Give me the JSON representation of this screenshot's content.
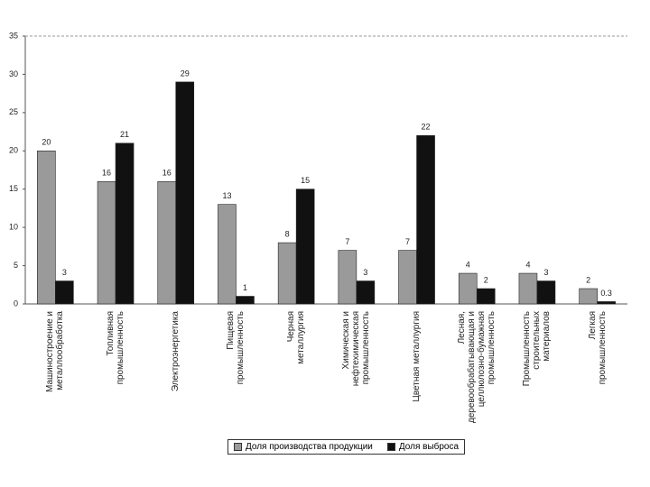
{
  "chart_data": {
    "type": "bar",
    "categories": [
      "Машиностроение и\nметаллообработка",
      "Топливная\nпромышленность",
      "Электроэнергетика",
      "Пищевая\nпромышленность",
      "Черная\nметаллургия",
      "Химическая и\nнефтехимическая\nпромышленность",
      "Цветная металлургия",
      "Лесная,\nдеревообрабатывающая и\nцеллюлозно-бумажная\nпромышленность",
      "Промышленность\nстроительных\nматериалов",
      "Легкая\nпромышленность"
    ],
    "series": [
      {
        "name": "Доля производства продукции",
        "color": "#9a9a9a",
        "values": [
          20,
          16,
          16,
          13,
          8,
          7,
          7,
          4,
          4,
          2
        ]
      },
      {
        "name": "Доля выброса",
        "color": "#111111",
        "values": [
          3,
          21,
          29,
          1,
          15,
          3,
          22,
          2,
          3,
          0.3
        ]
      }
    ],
    "ylim": [
      0,
      35
    ],
    "yticks": [
      0,
      5,
      10,
      15,
      20,
      25,
      30,
      35
    ],
    "grid": false,
    "legend": "bottom"
  }
}
